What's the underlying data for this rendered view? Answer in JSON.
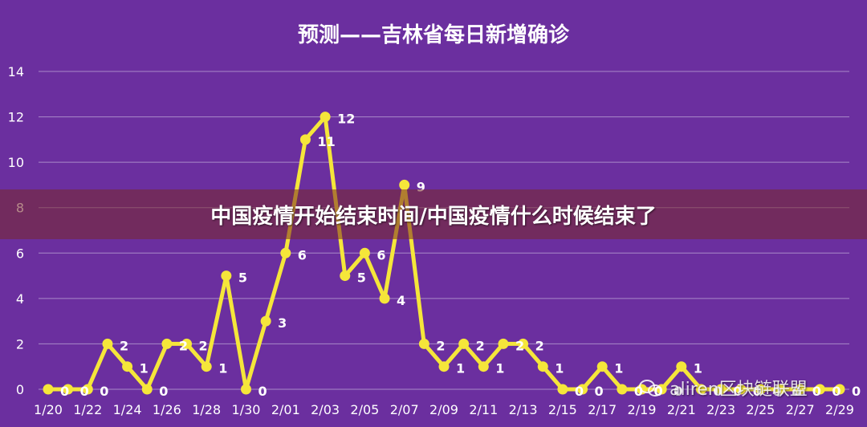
{
  "chart_data": {
    "type": "line",
    "title": "预测——吉林省每日新增确诊",
    "categories": [
      "1/20",
      "1/21",
      "1/22",
      "1/23",
      "1/24",
      "1/25",
      "1/26",
      "1/27",
      "1/28",
      "1/29",
      "1/30",
      "1/31",
      "2/01",
      "2/02",
      "2/03",
      "2/04",
      "2/05",
      "2/06",
      "2/07",
      "2/08",
      "2/09",
      "2/10",
      "2/11",
      "2/12",
      "2/13",
      "2/14",
      "2/15",
      "2/16",
      "2/17",
      "2/18",
      "2/19",
      "2/20",
      "2/21",
      "2/22",
      "2/23",
      "2/24",
      "2/25",
      "2/26",
      "2/27",
      "2/28",
      "2/29"
    ],
    "tick_labels": [
      "1/20",
      "1/22",
      "1/24",
      "1/26",
      "1/28",
      "1/30",
      "2/01",
      "2/03",
      "2/05",
      "2/07",
      "2/09",
      "2/11",
      "2/13",
      "2/15",
      "2/17",
      "2/19",
      "2/21",
      "2/23",
      "2/25",
      "2/27",
      "2/29"
    ],
    "series": [
      {
        "values": [
          0,
          0,
          0,
          2,
          1,
          0,
          2,
          2,
          1,
          5,
          0,
          3,
          6,
          11,
          12,
          5,
          6,
          4,
          9,
          2,
          1,
          2,
          1,
          2,
          2,
          1,
          0,
          0,
          1,
          0,
          0,
          0,
          1,
          0,
          0,
          0,
          0,
          0,
          0,
          0,
          0
        ]
      }
    ],
    "ylim": [
      0,
      14
    ],
    "yticks": [
      0,
      2,
      4,
      6,
      8,
      10,
      12,
      14
    ],
    "grid": true,
    "line_color": "#f5e63a",
    "label_color": "#ffffff"
  },
  "banner": {
    "title": "中国疫情开始结束时间/中国疫情什么时候结束了"
  },
  "watermark": {
    "text": "aliren区块链联盟",
    "icon": "wechat-icon"
  },
  "colors": {
    "background": "#6b2f9f",
    "grid": "#a98ac9",
    "banner_bg": "#7a2a3c"
  }
}
